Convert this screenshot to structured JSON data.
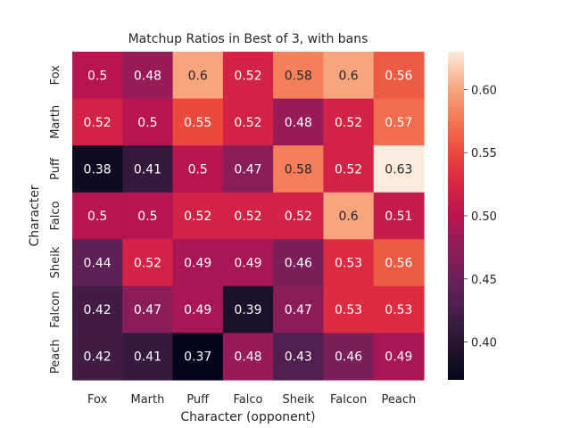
{
  "chart_data": {
    "type": "heatmap",
    "title": "Matchup Ratios in Best of 3, with bans",
    "xlabel": "Character (opponent)",
    "ylabel": "Character",
    "x_categories": [
      "Fox",
      "Marth",
      "Puff",
      "Falco",
      "Sheik",
      "Falcon",
      "Peach"
    ],
    "y_categories": [
      "Fox",
      "Marth",
      "Puff",
      "Falco",
      "Sheik",
      "Falcon",
      "Peach"
    ],
    "values": [
      [
        0.5,
        0.48,
        0.6,
        0.52,
        0.58,
        0.6,
        0.56
      ],
      [
        0.52,
        0.5,
        0.55,
        0.52,
        0.48,
        0.52,
        0.57
      ],
      [
        0.38,
        0.41,
        0.5,
        0.47,
        0.58,
        0.52,
        0.63
      ],
      [
        0.5,
        0.5,
        0.52,
        0.52,
        0.52,
        0.6,
        0.51
      ],
      [
        0.44,
        0.52,
        0.49,
        0.49,
        0.46,
        0.53,
        0.56
      ],
      [
        0.42,
        0.47,
        0.49,
        0.39,
        0.47,
        0.53,
        0.53
      ],
      [
        0.42,
        0.41,
        0.37,
        0.48,
        0.43,
        0.46,
        0.49
      ]
    ],
    "colorbar": {
      "range": [
        0.37,
        0.63
      ],
      "ticks": [
        "0.40",
        "0.45",
        "0.50",
        "0.55",
        "0.60"
      ],
      "colormap": "rocket"
    },
    "grid": false,
    "legend": "colorbar-right"
  }
}
